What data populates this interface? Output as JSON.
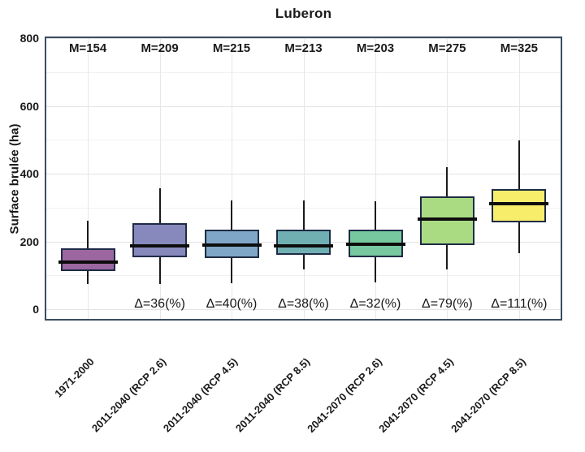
{
  "page": {
    "background": "#ffffff"
  },
  "chart_data": {
    "type": "boxplot",
    "title": "Luberon",
    "xlabel": "",
    "ylabel": "Surface brulée (ha)",
    "ylim": [
      0,
      800
    ],
    "yticks": [
      0,
      200,
      400,
      600,
      800
    ],
    "grid": {
      "horizontal_minor_step": 100,
      "horizontal_major_step": 200,
      "vertical_at_categories": true,
      "minor_color": "#f1f1f1",
      "major_color": "#e3e3e3",
      "vertical_color": "#e7e7e7"
    },
    "legend": "none",
    "frame_color": "#3b4c63",
    "box_border_color": "#1e2b45",
    "whisker_color": "#1a1a1a",
    "median_color": "#0d0d0d",
    "categories": [
      "1971-2000",
      "2011-2040 (RCP 2.6)",
      "2011-2040 (RCP 4.5)",
      "2011-2040 (RCP 8.5)",
      "2041-2070 (RCP 2.6)",
      "2041-2070 (RCP 4.5)",
      "2041-2070 (RCP 8.5)"
    ],
    "series": [
      {
        "category": "1971-2000",
        "mean": 154,
        "mean_label": "M=154",
        "delta_pct": null,
        "delta_label": "",
        "whisker_low": 75,
        "q1": 112,
        "median": 139,
        "q3": 180,
        "whisker_high": 262,
        "fill": "#9c66a0"
      },
      {
        "category": "2011-2040 (RCP 2.6)",
        "mean": 209,
        "mean_label": "M=209",
        "delta_pct": 36,
        "delta_label": "Δ=36(%)",
        "whisker_low": 75,
        "q1": 153,
        "median": 187,
        "q3": 254,
        "whisker_high": 357,
        "fill": "#8789bd"
      },
      {
        "category": "2011-2040 (RCP 4.5)",
        "mean": 215,
        "mean_label": "M=215",
        "delta_pct": 40,
        "delta_label": "Δ=40(%)",
        "whisker_low": 77,
        "q1": 151,
        "median": 189,
        "q3": 235,
        "whisker_high": 320,
        "fill": "#7fa6c7"
      },
      {
        "category": "2011-2040 (RCP 8.5)",
        "mean": 213,
        "mean_label": "M=213",
        "delta_pct": 38,
        "delta_label": "Δ=38(%)",
        "whisker_low": 117,
        "q1": 160,
        "median": 187,
        "q3": 235,
        "whisker_high": 320,
        "fill": "#70b0b2"
      },
      {
        "category": "2041-2070 (RCP 2.6)",
        "mean": 203,
        "mean_label": "M=203",
        "delta_pct": 32,
        "delta_label": "Δ=32(%)",
        "whisker_low": 80,
        "q1": 153,
        "median": 192,
        "q3": 235,
        "whisker_high": 319,
        "fill": "#77c89f"
      },
      {
        "category": "2041-2070 (RCP 4.5)",
        "mean": 275,
        "mean_label": "M=275",
        "delta_pct": 79,
        "delta_label": "Δ=79(%)",
        "whisker_low": 117,
        "q1": 189,
        "median": 266,
        "q3": 333,
        "whisker_high": 419,
        "fill": "#aadb83"
      },
      {
        "category": "2041-2070 (RCP 8.5)",
        "mean": 325,
        "mean_label": "M=325",
        "delta_pct": 111,
        "delta_label": "Δ=111(%)",
        "whisker_low": 165,
        "q1": 256,
        "median": 311,
        "q3": 354,
        "whisker_high": 498,
        "fill": "#f8ec6b"
      }
    ]
  }
}
